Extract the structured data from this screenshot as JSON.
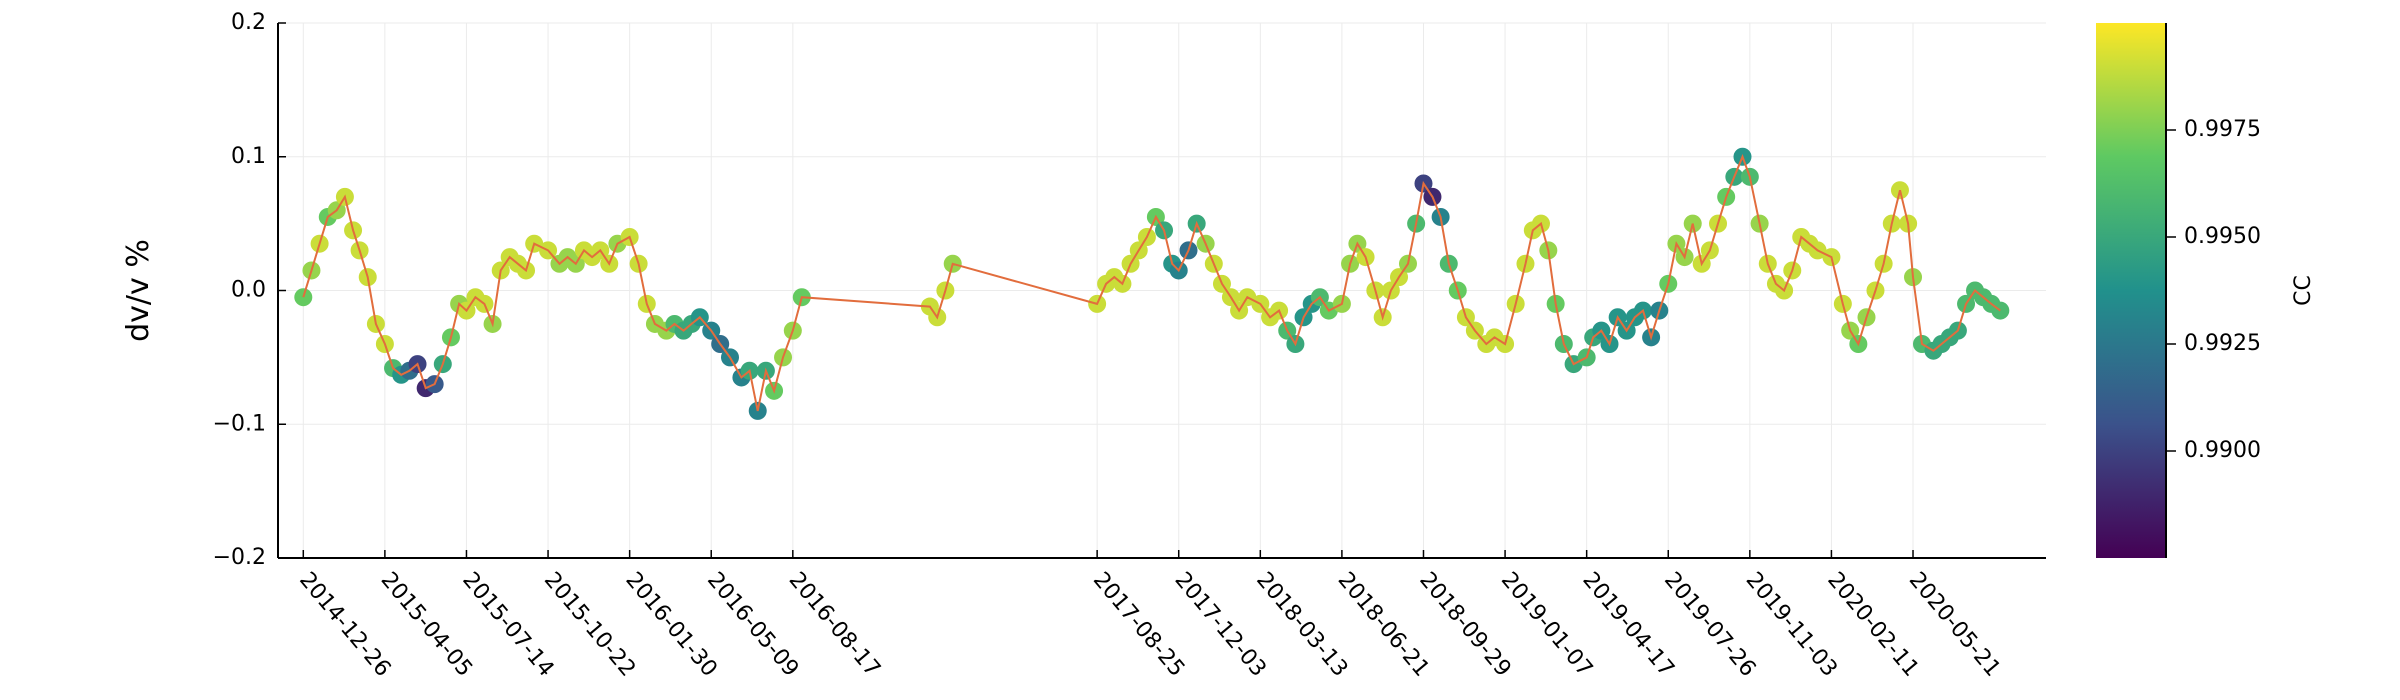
{
  "chart_data": {
    "type": "scatter",
    "title": "",
    "xlabel": "",
    "ylabel": "dv/v %",
    "ylim": [
      -0.2,
      0.2
    ],
    "xlim": [
      "2014-11-25",
      "2020-10-31"
    ],
    "grid": true,
    "x_ticks": [
      "2014-12-26",
      "2015-04-05",
      "2015-07-14",
      "2015-10-22",
      "2016-01-30",
      "2016-05-09",
      "2016-08-17",
      "2017-08-25",
      "2017-12-03",
      "2018-03-13",
      "2018-06-21",
      "2018-09-29",
      "2019-01-07",
      "2019-04-17",
      "2019-07-26",
      "2019-11-03",
      "2020-02-11",
      "2020-05-21"
    ],
    "y_ticks": [
      -0.2,
      -0.1,
      0.0,
      0.1,
      0.2
    ],
    "y_tick_labels": [
      "−0.2",
      "−0.1",
      "0.0",
      "0.1",
      "0.2"
    ],
    "line_color": "#e26d3d",
    "colormap": "viridis",
    "colorbar": {
      "label": "CC",
      "range": [
        0.9875,
        1.0
      ],
      "ticks": [
        0.99,
        0.9925,
        0.995,
        0.9975
      ],
      "tick_labels": [
        "0.9900",
        "0.9925",
        "0.9950",
        "0.9975"
      ]
    },
    "series": [
      {
        "points": [
          [
            "2014-12-26",
            -0.005,
            0.997
          ],
          [
            "2015-01-05",
            0.015,
            0.998
          ],
          [
            "2015-01-15",
            0.035,
            0.999
          ],
          [
            "2015-01-25",
            0.055,
            0.997
          ],
          [
            "2015-02-05",
            0.06,
            0.998
          ],
          [
            "2015-02-15",
            0.07,
            0.999
          ],
          [
            "2015-02-25",
            0.045,
            0.999
          ],
          [
            "2015-03-05",
            0.03,
            0.999
          ],
          [
            "2015-03-15",
            0.01,
            0.999
          ],
          [
            "2015-03-25",
            -0.025,
            0.999
          ],
          [
            "2015-04-05",
            -0.04,
            0.999
          ],
          [
            "2015-04-15",
            -0.058,
            0.996
          ],
          [
            "2015-04-25",
            -0.063,
            0.994
          ],
          [
            "2015-05-05",
            -0.06,
            0.992
          ],
          [
            "2015-05-15",
            -0.055,
            0.99
          ],
          [
            "2015-05-25",
            -0.073,
            0.989
          ],
          [
            "2015-06-05",
            -0.07,
            0.991
          ],
          [
            "2015-06-15",
            -0.055,
            0.995
          ],
          [
            "2015-06-25",
            -0.035,
            0.997
          ],
          [
            "2015-07-05",
            -0.01,
            0.998
          ],
          [
            "2015-07-14",
            -0.015,
            0.999
          ],
          [
            "2015-07-25",
            -0.005,
            0.999
          ],
          [
            "2015-08-05",
            -0.01,
            0.999
          ],
          [
            "2015-08-15",
            -0.025,
            0.998
          ],
          [
            "2015-08-25",
            0.015,
            0.999
          ],
          [
            "2015-09-05",
            0.025,
            0.999
          ],
          [
            "2015-09-15",
            0.02,
            0.999
          ],
          [
            "2015-09-25",
            0.015,
            0.999
          ],
          [
            "2015-10-05",
            0.035,
            0.999
          ],
          [
            "2015-10-22",
            0.03,
            0.999
          ],
          [
            "2015-11-05",
            0.02,
            0.998
          ],
          [
            "2015-11-15",
            0.025,
            0.998
          ],
          [
            "2015-11-25",
            0.02,
            0.998
          ],
          [
            "2015-12-05",
            0.03,
            0.999
          ],
          [
            "2015-12-15",
            0.025,
            0.999
          ],
          [
            "2015-12-25",
            0.03,
            0.999
          ],
          [
            "2016-01-05",
            0.02,
            0.999
          ],
          [
            "2016-01-15",
            0.035,
            0.998
          ],
          [
            "2016-01-30",
            0.04,
            0.999
          ],
          [
            "2016-02-10",
            0.02,
            0.999
          ],
          [
            "2016-02-20",
            -0.01,
            0.999
          ],
          [
            "2016-03-01",
            -0.025,
            0.998
          ],
          [
            "2016-03-15",
            -0.03,
            0.998
          ],
          [
            "2016-03-25",
            -0.025,
            0.996
          ],
          [
            "2016-04-05",
            -0.03,
            0.995
          ],
          [
            "2016-04-15",
            -0.025,
            0.995
          ],
          [
            "2016-04-25",
            -0.02,
            0.994
          ],
          [
            "2016-05-09",
            -0.03,
            0.993
          ],
          [
            "2016-05-20",
            -0.04,
            0.992
          ],
          [
            "2016-06-01",
            -0.05,
            0.993
          ],
          [
            "2016-06-15",
            -0.065,
            0.993
          ],
          [
            "2016-06-25",
            -0.06,
            0.995
          ],
          [
            "2016-07-05",
            -0.09,
            0.993
          ],
          [
            "2016-07-15",
            -0.06,
            0.995
          ],
          [
            "2016-07-25",
            -0.075,
            0.997
          ],
          [
            "2016-08-05",
            -0.05,
            0.998
          ],
          [
            "2016-08-17",
            -0.03,
            0.998
          ],
          [
            "2016-08-28",
            -0.005,
            0.997
          ],
          [
            "2017-02-01",
            -0.012,
            0.999
          ],
          [
            "2017-02-10",
            -0.02,
            0.999
          ],
          [
            "2017-02-20",
            0.0,
            0.999
          ],
          [
            "2017-03-01",
            0.02,
            0.998
          ],
          [
            "2017-08-25",
            -0.01,
            0.999
          ],
          [
            "2017-09-05",
            0.005,
            0.999
          ],
          [
            "2017-09-15",
            0.01,
            0.999
          ],
          [
            "2017-09-25",
            0.005,
            0.999
          ],
          [
            "2017-10-05",
            0.02,
            0.999
          ],
          [
            "2017-10-15",
            0.03,
            0.999
          ],
          [
            "2017-10-25",
            0.04,
            0.999
          ],
          [
            "2017-11-05",
            0.055,
            0.997
          ],
          [
            "2017-11-15",
            0.045,
            0.995
          ],
          [
            "2017-11-25",
            0.02,
            0.994
          ],
          [
            "2017-12-03",
            0.015,
            0.993
          ],
          [
            "2017-12-15",
            0.03,
            0.992
          ],
          [
            "2017-12-25",
            0.05,
            0.995
          ],
          [
            "2018-01-05",
            0.035,
            0.998
          ],
          [
            "2018-01-15",
            0.02,
            0.999
          ],
          [
            "2018-01-25",
            0.005,
            0.999
          ],
          [
            "2018-02-05",
            -0.005,
            0.999
          ],
          [
            "2018-02-15",
            -0.015,
            0.999
          ],
          [
            "2018-02-25",
            -0.005,
            0.999
          ],
          [
            "2018-03-13",
            -0.01,
            0.999
          ],
          [
            "2018-03-25",
            -0.02,
            0.999
          ],
          [
            "2018-04-05",
            -0.015,
            0.999
          ],
          [
            "2018-04-15",
            -0.03,
            0.996
          ],
          [
            "2018-04-25",
            -0.04,
            0.995
          ],
          [
            "2018-05-05",
            -0.02,
            0.994
          ],
          [
            "2018-05-15",
            -0.01,
            0.994
          ],
          [
            "2018-05-25",
            -0.005,
            0.996
          ],
          [
            "2018-06-05",
            -0.015,
            0.997
          ],
          [
            "2018-06-21",
            -0.01,
            0.998
          ],
          [
            "2018-07-01",
            0.02,
            0.998
          ],
          [
            "2018-07-10",
            0.035,
            0.998
          ],
          [
            "2018-07-20",
            0.025,
            0.999
          ],
          [
            "2018-08-01",
            0.0,
            0.999
          ],
          [
            "2018-08-10",
            -0.02,
            0.999
          ],
          [
            "2018-08-20",
            0.0,
            0.999
          ],
          [
            "2018-08-30",
            0.01,
            0.999
          ],
          [
            "2018-09-10",
            0.02,
            0.998
          ],
          [
            "2018-09-20",
            0.05,
            0.996
          ],
          [
            "2018-09-29",
            0.08,
            0.99
          ],
          [
            "2018-10-10",
            0.07,
            0.989
          ],
          [
            "2018-10-20",
            0.055,
            0.993
          ],
          [
            "2018-10-30",
            0.02,
            0.996
          ],
          [
            "2018-11-10",
            0.0,
            0.997
          ],
          [
            "2018-11-20",
            -0.02,
            0.999
          ],
          [
            "2018-12-01",
            -0.03,
            0.999
          ],
          [
            "2018-12-15",
            -0.04,
            0.999
          ],
          [
            "2018-12-25",
            -0.035,
            0.999
          ],
          [
            "2019-01-07",
            -0.04,
            0.999
          ],
          [
            "2019-01-20",
            -0.01,
            0.999
          ],
          [
            "2019-02-01",
            0.02,
            0.999
          ],
          [
            "2019-02-10",
            0.045,
            0.999
          ],
          [
            "2019-02-20",
            0.05,
            0.999
          ],
          [
            "2019-03-01",
            0.03,
            0.998
          ],
          [
            "2019-03-10",
            -0.01,
            0.997
          ],
          [
            "2019-03-20",
            -0.04,
            0.996
          ],
          [
            "2019-04-01",
            -0.055,
            0.995
          ],
          [
            "2019-04-17",
            -0.05,
            0.996
          ],
          [
            "2019-04-25",
            -0.035,
            0.995
          ],
          [
            "2019-05-05",
            -0.03,
            0.994
          ],
          [
            "2019-05-15",
            -0.04,
            0.994
          ],
          [
            "2019-05-25",
            -0.02,
            0.994
          ],
          [
            "2019-06-05",
            -0.03,
            0.994
          ],
          [
            "2019-06-15",
            -0.02,
            0.994
          ],
          [
            "2019-06-25",
            -0.015,
            0.994
          ],
          [
            "2019-07-05",
            -0.035,
            0.993
          ],
          [
            "2019-07-15",
            -0.015,
            0.993
          ],
          [
            "2019-07-26",
            0.005,
            0.997
          ],
          [
            "2019-08-05",
            0.035,
            0.998
          ],
          [
            "2019-08-15",
            0.025,
            0.998
          ],
          [
            "2019-08-25",
            0.05,
            0.998
          ],
          [
            "2019-09-05",
            0.02,
            0.999
          ],
          [
            "2019-09-15",
            0.03,
            0.999
          ],
          [
            "2019-09-25",
            0.05,
            0.999
          ],
          [
            "2019-10-05",
            0.07,
            0.997
          ],
          [
            "2019-10-15",
            0.085,
            0.995
          ],
          [
            "2019-10-25",
            0.1,
            0.994
          ],
          [
            "2019-11-03",
            0.085,
            0.996
          ],
          [
            "2019-11-15",
            0.05,
            0.998
          ],
          [
            "2019-11-25",
            0.02,
            0.999
          ],
          [
            "2019-12-05",
            0.005,
            0.999
          ],
          [
            "2019-12-15",
            0.0,
            0.999
          ],
          [
            "2019-12-25",
            0.015,
            0.999
          ],
          [
            "2020-01-05",
            0.04,
            0.999
          ],
          [
            "2020-01-15",
            0.035,
            0.999
          ],
          [
            "2020-01-25",
            0.03,
            0.999
          ],
          [
            "2020-02-11",
            0.025,
            0.999
          ],
          [
            "2020-02-25",
            -0.01,
            0.999
          ],
          [
            "2020-03-05",
            -0.03,
            0.998
          ],
          [
            "2020-03-15",
            -0.04,
            0.997
          ],
          [
            "2020-03-25",
            -0.02,
            0.998
          ],
          [
            "2020-04-05",
            0.0,
            0.999
          ],
          [
            "2020-04-15",
            0.02,
            0.999
          ],
          [
            "2020-04-25",
            0.05,
            0.999
          ],
          [
            "2020-05-05",
            0.075,
            0.999
          ],
          [
            "2020-05-15",
            0.05,
            0.999
          ],
          [
            "2020-05-21",
            0.01,
            0.998
          ],
          [
            "2020-06-01",
            -0.04,
            0.996
          ],
          [
            "2020-06-15",
            -0.045,
            0.995
          ],
          [
            "2020-06-25",
            -0.04,
            0.995
          ],
          [
            "2020-07-05",
            -0.035,
            0.995
          ],
          [
            "2020-07-15",
            -0.03,
            0.995
          ],
          [
            "2020-07-25",
            -0.01,
            0.996
          ],
          [
            "2020-08-05",
            0.0,
            0.996
          ],
          [
            "2020-08-15",
            -0.005,
            0.996
          ],
          [
            "2020-08-25",
            -0.01,
            0.996
          ],
          [
            "2020-09-05",
            -0.015,
            0.996
          ]
        ]
      }
    ]
  }
}
